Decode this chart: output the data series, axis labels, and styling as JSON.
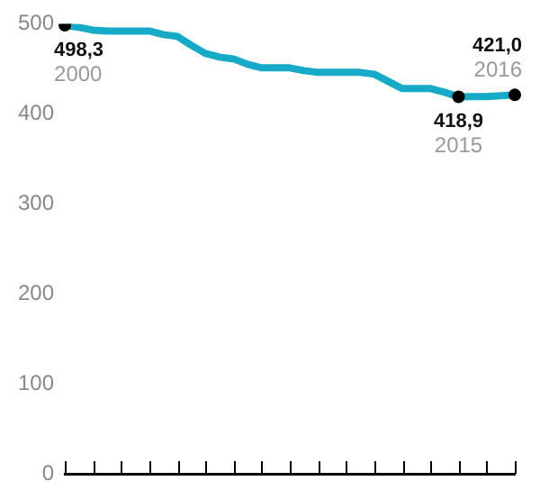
{
  "chart_data": {
    "type": "line",
    "categories": [
      null,
      null,
      null,
      null,
      null,
      null,
      null,
      null,
      null,
      null,
      null,
      null,
      null,
      null,
      null,
      null,
      null,
      null,
      null,
      null,
      null,
      null,
      null,
      null,
      null,
      null,
      null,
      null,
      null,
      null,
      null,
      null,
      null
    ],
    "series": [
      {
        "color": "#17a9c8",
        "values": [
          498.3,
          496,
          493,
          492,
          492,
          492,
          492,
          488,
          486,
          476,
          467,
          463,
          461,
          455,
          451,
          451,
          451,
          448,
          446,
          446,
          446,
          446,
          444,
          436,
          428,
          428,
          428,
          424,
          418.9,
          419,
          419,
          420,
          421.0
        ],
        "value_labels": [
          "498,3",
          null,
          null,
          null,
          null,
          null,
          null,
          null,
          null,
          null,
          null,
          null,
          null,
          null,
          null,
          null,
          null,
          null,
          null,
          null,
          null,
          null,
          null,
          null,
          null,
          null,
          null,
          null,
          "418,9",
          null,
          null,
          null,
          "421,0"
        ]
      }
    ],
    "annotations": [
      "2000",
      "2015",
      "2016"
    ],
    "ylim": [
      0,
      500
    ],
    "yticks": [
      0,
      100,
      200,
      300,
      400,
      500
    ],
    "line_style": "solid",
    "tick_labels": "y"
  }
}
